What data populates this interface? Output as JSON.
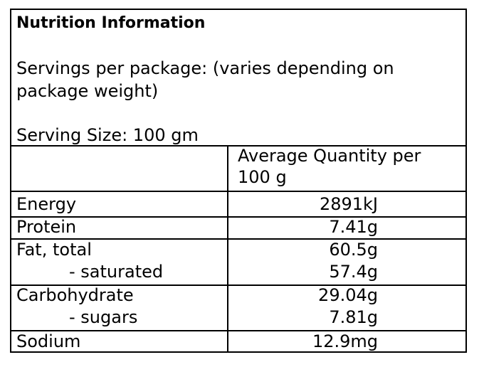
{
  "panel": {
    "title": "Nutrition Information",
    "servings_line1": "Servings per package: (varies depending on",
    "servings_line2": "package weight)",
    "serving_size": "Serving Size: 100 gm"
  },
  "table": {
    "header_line1": "Average Quantity per",
    "header_line2": "100 g",
    "rows": [
      {
        "label": "Energy",
        "value": "2891kJ"
      },
      {
        "label": "Protein",
        "value": "7.41g"
      },
      {
        "label": "Fat, total",
        "value": "60.5g"
      },
      {
        "label": "- saturated",
        "value": "57.4g"
      },
      {
        "label": "Carbohydrate",
        "value": "29.04g"
      },
      {
        "label": "- sugars",
        "value": "7.81g"
      },
      {
        "label": "Sodium",
        "value": "12.9mg"
      }
    ]
  }
}
